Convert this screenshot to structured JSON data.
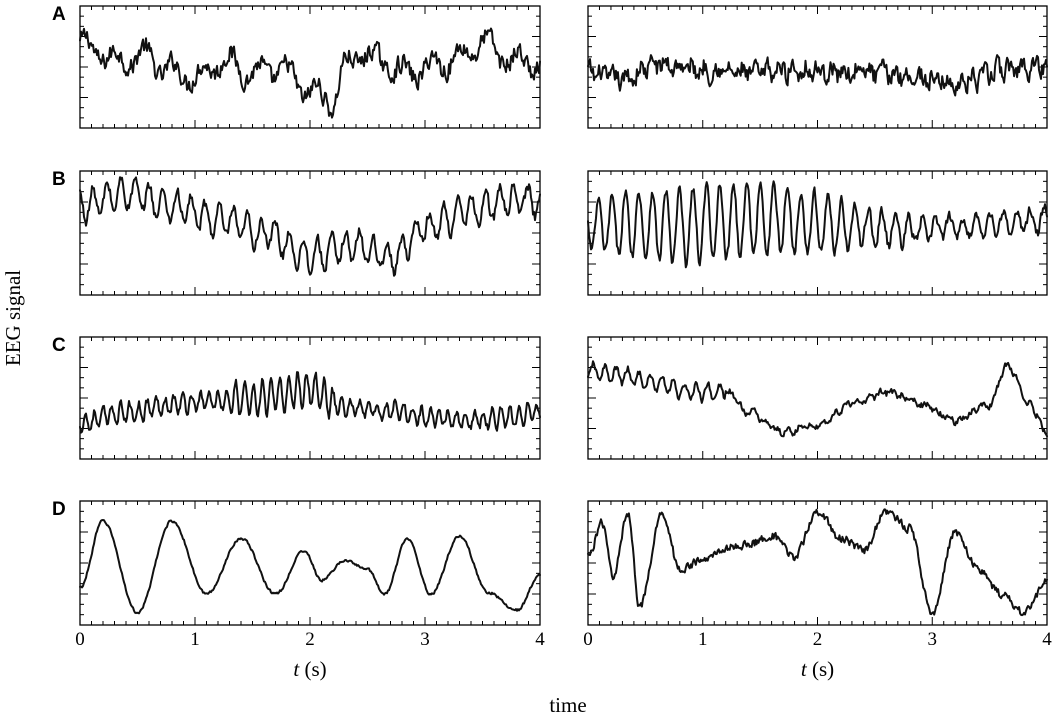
{
  "figure": {
    "ylabel": "EEG signal",
    "xlabel": "time",
    "panel_xlabel_var": "t",
    "panel_xlabel_unit": "(s)",
    "row_letters": [
      "A",
      "B",
      "C",
      "D"
    ],
    "x_ticks": [
      "0",
      "1",
      "2",
      "3",
      "4"
    ]
  },
  "chart_data": [
    {
      "type": "line",
      "row": "A",
      "column": "left",
      "xlim": [
        0,
        4
      ],
      "series": [
        {
          "x": [
            0.0,
            0.15,
            0.35,
            0.55,
            0.75,
            1.0,
            1.25,
            1.5,
            1.75,
            2.0,
            2.2,
            2.3,
            2.45,
            2.6,
            2.85,
            3.1,
            3.35,
            3.5,
            3.65,
            3.8,
            4.0
          ],
          "y": [
            0.7,
            0.62,
            0.55,
            0.6,
            0.48,
            0.42,
            0.55,
            0.45,
            0.48,
            0.3,
            0.22,
            0.5,
            0.62,
            0.55,
            0.45,
            0.52,
            0.6,
            0.72,
            0.6,
            0.55,
            0.52
          ]
        }
      ]
    },
    {
      "type": "line",
      "row": "A",
      "column": "right",
      "xlim": [
        0,
        4
      ],
      "series": [
        {
          "x": [
            0.0,
            0.3,
            0.6,
            1.0,
            1.4,
            1.8,
            2.2,
            2.6,
            3.0,
            3.2,
            3.4,
            3.6,
            3.8,
            4.0
          ],
          "y": [
            0.45,
            0.4,
            0.52,
            0.48,
            0.45,
            0.48,
            0.46,
            0.45,
            0.4,
            0.36,
            0.4,
            0.48,
            0.5,
            0.52
          ]
        }
      ]
    },
    {
      "type": "line",
      "row": "B",
      "column": "left",
      "xlim": [
        0,
        4
      ],
      "series": [
        {
          "x": [
            0.0,
            0.4,
            0.8,
            1.2,
            1.6,
            2.0,
            2.4,
            2.7,
            3.0,
            3.4,
            3.8,
            4.0
          ],
          "y": [
            0.72,
            0.82,
            0.72,
            0.6,
            0.5,
            0.32,
            0.4,
            0.3,
            0.55,
            0.68,
            0.78,
            0.75
          ]
        }
      ]
    },
    {
      "type": "line",
      "row": "B",
      "column": "right",
      "xlim": [
        0,
        4
      ],
      "series": [
        {
          "x": [
            0.0,
            0.4,
            0.8,
            1.2,
            1.6,
            2.0,
            2.4,
            2.8,
            3.2,
            3.6,
            4.0
          ],
          "y": [
            0.55,
            0.58,
            0.55,
            0.6,
            0.62,
            0.58,
            0.55,
            0.52,
            0.55,
            0.58,
            0.6
          ]
        }
      ]
    },
    {
      "type": "line",
      "row": "C",
      "column": "left",
      "xlim": [
        0,
        4
      ],
      "series": [
        {
          "x": [
            0.0,
            0.4,
            0.8,
            1.2,
            1.6,
            2.0,
            2.3,
            2.6,
            3.0,
            3.4,
            3.8,
            4.0
          ],
          "y": [
            0.3,
            0.38,
            0.45,
            0.48,
            0.5,
            0.58,
            0.42,
            0.4,
            0.35,
            0.32,
            0.35,
            0.38
          ]
        }
      ]
    },
    {
      "type": "line",
      "row": "C",
      "column": "right",
      "xlim": [
        0,
        4
      ],
      "series": [
        {
          "x": [
            0.0,
            0.3,
            0.6,
            0.9,
            1.2,
            1.4,
            1.7,
            2.0,
            2.3,
            2.6,
            2.9,
            3.2,
            3.5,
            3.65,
            3.85,
            4.0
          ],
          "y": [
            0.72,
            0.68,
            0.62,
            0.55,
            0.55,
            0.38,
            0.22,
            0.28,
            0.45,
            0.55,
            0.45,
            0.32,
            0.45,
            0.76,
            0.45,
            0.22
          ]
        }
      ]
    },
    {
      "type": "line",
      "row": "D",
      "column": "left",
      "xlim": [
        0,
        4
      ],
      "series": [
        {
          "x": [
            0.0,
            0.2,
            0.5,
            0.8,
            1.1,
            1.4,
            1.7,
            1.95,
            2.1,
            2.3,
            2.5,
            2.65,
            2.85,
            3.05,
            3.3,
            3.55,
            3.8,
            4.0
          ],
          "y": [
            0.3,
            0.84,
            0.1,
            0.84,
            0.25,
            0.7,
            0.25,
            0.6,
            0.36,
            0.52,
            0.45,
            0.25,
            0.7,
            0.25,
            0.72,
            0.26,
            0.12,
            0.4
          ]
        }
      ]
    },
    {
      "type": "line",
      "row": "D",
      "column": "right",
      "xlim": [
        0,
        4
      ],
      "series": [
        {
          "x": [
            0.0,
            0.12,
            0.22,
            0.35,
            0.45,
            0.65,
            0.8,
            1.0,
            1.2,
            1.4,
            1.6,
            1.8,
            2.0,
            2.2,
            2.4,
            2.6,
            2.8,
            3.0,
            3.2,
            3.4,
            3.6,
            3.8,
            4.0
          ],
          "y": [
            0.55,
            0.82,
            0.4,
            0.9,
            0.15,
            0.9,
            0.45,
            0.52,
            0.62,
            0.65,
            0.72,
            0.55,
            0.92,
            0.7,
            0.6,
            0.92,
            0.78,
            0.1,
            0.75,
            0.45,
            0.25,
            0.1,
            0.35
          ]
        }
      ]
    }
  ]
}
